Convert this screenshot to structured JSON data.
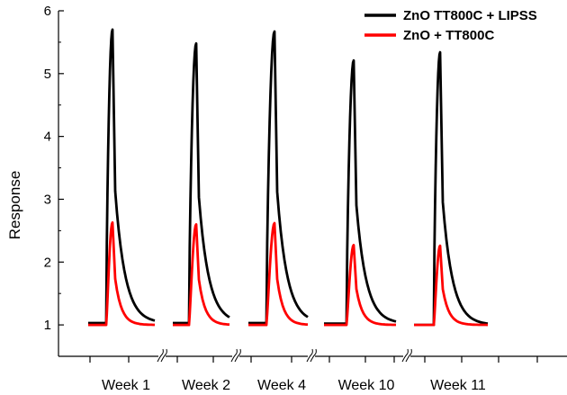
{
  "chart_data": {
    "type": "line",
    "ylabel": "Response",
    "ylim": [
      0.5,
      6
    ],
    "yticks": [
      1,
      2,
      3,
      4,
      5,
      6
    ],
    "categories": [
      "Week 1",
      "Week 2",
      "Week 4",
      "Week 10",
      "Week 11"
    ],
    "legend_position": "top-right",
    "series": [
      {
        "name": "ZnO TT800C + LIPSS",
        "color": "#000000",
        "peaks": [
          5.7,
          5.48,
          5.67,
          5.21,
          5.34
        ],
        "baselines": [
          1.03,
          1.03,
          1.03,
          1.02,
          1.0
        ]
      },
      {
        "name": "ZnO + TT800C",
        "color": "#ff0000",
        "peaks": [
          2.63,
          2.6,
          2.62,
          2.27,
          2.26
        ],
        "baselines": [
          1.0,
          1.0,
          1.0,
          1.0,
          1.0
        ]
      }
    ]
  }
}
